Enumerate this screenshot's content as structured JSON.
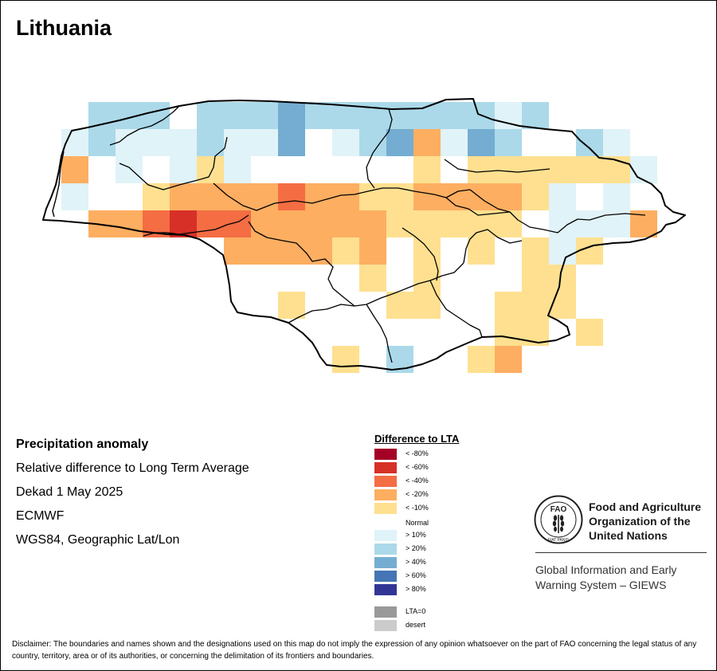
{
  "map": {
    "title": "Lithuania",
    "info_title": "Precipitation anomaly",
    "info_lines": [
      "Relative difference to Long Term Average",
      "Dekad 1 May 2025",
      "ECMWF",
      "WGS84, Geographic Lat/Lon"
    ]
  },
  "legend": {
    "title": "Difference to LTA",
    "items": [
      {
        "key": "lt_m80",
        "label": "< -80%",
        "color": "#a50026"
      },
      {
        "key": "lt_m60",
        "label": "< -60%",
        "color": "#d73027"
      },
      {
        "key": "lt_m40",
        "label": "< -40%",
        "color": "#f46d43"
      },
      {
        "key": "lt_m20",
        "label": "< -20%",
        "color": "#fdae61"
      },
      {
        "key": "lt_m10",
        "label": "< -10%",
        "color": "#fee090"
      },
      {
        "key": "gt_10",
        "label": "> 10%",
        "color": "#e0f3f8"
      },
      {
        "key": "gt_20",
        "label": "> 20%",
        "color": "#abd9e9"
      },
      {
        "key": "gt_40",
        "label": "> 40%",
        "color": "#74add1"
      },
      {
        "key": "gt_60",
        "label": "> 60%",
        "color": "#4575b4"
      },
      {
        "key": "gt_80",
        "label": "> 80%",
        "color": "#313695"
      },
      {
        "key": "lta0",
        "label": "LTA=0",
        "color": "#999999"
      },
      {
        "key": "desert",
        "label": "desert",
        "color": "#cccccc"
      }
    ],
    "normal_label": "Normal"
  },
  "org": {
    "fao_name_lines": [
      "Food and Agriculture",
      "Organization of the",
      "United Nations"
    ],
    "giews_lines": [
      "Global Information and Early",
      "Warning System – GIEWS"
    ],
    "logo_letters": "FAO",
    "logo_motto": "FIAT PANIS"
  },
  "disclaimer": "Disclaimer: The boundaries and names shown and the designations used on this map do not imply the expression of any opinion whatsoever on the part of FAO concerning the legal status of any country, territory, area or of its authorities, or concerning the delimitation of its frontiers and boundaries.",
  "grid_cells": [
    {
      "col": 1,
      "row": 0,
      "c": "gt_20"
    },
    {
      "col": 2,
      "row": 0,
      "c": "gt_20"
    },
    {
      "col": 3,
      "row": 0,
      "c": "gt_20"
    },
    {
      "col": 5,
      "row": 0,
      "c": "gt_20"
    },
    {
      "col": 6,
      "row": 0,
      "c": "gt_20"
    },
    {
      "col": 7,
      "row": 0,
      "c": "gt_20"
    },
    {
      "col": 8,
      "row": 0,
      "c": "gt_40"
    },
    {
      "col": 9,
      "row": 0,
      "c": "gt_20"
    },
    {
      "col": 10,
      "row": 0,
      "c": "gt_20"
    },
    {
      "col": 11,
      "row": 0,
      "c": "gt_20"
    },
    {
      "col": 12,
      "row": 0,
      "c": "gt_20"
    },
    {
      "col": 13,
      "row": 0,
      "c": "gt_20"
    },
    {
      "col": 14,
      "row": 0,
      "c": "gt_20"
    },
    {
      "col": 15,
      "row": 0,
      "c": "gt_20"
    },
    {
      "col": 16,
      "row": 0,
      "c": "gt_10"
    },
    {
      "col": 17,
      "row": 0,
      "c": "gt_20"
    },
    {
      "col": 0,
      "row": 1,
      "c": "gt_10"
    },
    {
      "col": 1,
      "row": 1,
      "c": "gt_20"
    },
    {
      "col": 2,
      "row": 1,
      "c": "gt_10"
    },
    {
      "col": 3,
      "row": 1,
      "c": "gt_10"
    },
    {
      "col": 4,
      "row": 1,
      "c": "gt_10"
    },
    {
      "col": 5,
      "row": 1,
      "c": "gt_20"
    },
    {
      "col": 6,
      "row": 1,
      "c": "gt_10"
    },
    {
      "col": 7,
      "row": 1,
      "c": "gt_10"
    },
    {
      "col": 8,
      "row": 1,
      "c": "gt_40"
    },
    {
      "col": 10,
      "row": 1,
      "c": "gt_10"
    },
    {
      "col": 11,
      "row": 1,
      "c": "gt_20"
    },
    {
      "col": 12,
      "row": 1,
      "c": "gt_40"
    },
    {
      "col": 13,
      "row": 1,
      "c": "lt_m20"
    },
    {
      "col": 14,
      "row": 1,
      "c": "gt_10"
    },
    {
      "col": 15,
      "row": 1,
      "c": "gt_40"
    },
    {
      "col": 16,
      "row": 1,
      "c": "gt_20"
    },
    {
      "col": 19,
      "row": 1,
      "c": "gt_20"
    },
    {
      "col": 20,
      "row": 1,
      "c": "gt_10"
    },
    {
      "col": 0,
      "row": 2,
      "c": "lt_m20"
    },
    {
      "col": 2,
      "row": 2,
      "c": "gt_10"
    },
    {
      "col": 4,
      "row": 2,
      "c": "gt_10"
    },
    {
      "col": 5,
      "row": 2,
      "c": "lt_m10"
    },
    {
      "col": 6,
      "row": 2,
      "c": "gt_10"
    },
    {
      "col": 13,
      "row": 2,
      "c": "lt_m10"
    },
    {
      "col": 15,
      "row": 2,
      "c": "lt_m10"
    },
    {
      "col": 16,
      "row": 2,
      "c": "lt_m10"
    },
    {
      "col": 17,
      "row": 2,
      "c": "lt_m10"
    },
    {
      "col": 18,
      "row": 2,
      "c": "lt_m10"
    },
    {
      "col": 19,
      "row": 2,
      "c": "lt_m10"
    },
    {
      "col": 20,
      "row": 2,
      "c": "lt_m10"
    },
    {
      "col": 21,
      "row": 2,
      "c": "gt_10"
    },
    {
      "col": 0,
      "row": 3,
      "c": "gt_10"
    },
    {
      "col": 3,
      "row": 3,
      "c": "lt_m10"
    },
    {
      "col": 4,
      "row": 3,
      "c": "lt_m20"
    },
    {
      "col": 5,
      "row": 3,
      "c": "lt_m20"
    },
    {
      "col": 6,
      "row": 3,
      "c": "lt_m20"
    },
    {
      "col": 7,
      "row": 3,
      "c": "lt_m20"
    },
    {
      "col": 8,
      "row": 3,
      "c": "lt_m40"
    },
    {
      "col": 9,
      "row": 3,
      "c": "lt_m20"
    },
    {
      "col": 10,
      "row": 3,
      "c": "lt_m20"
    },
    {
      "col": 11,
      "row": 3,
      "c": "lt_m10"
    },
    {
      "col": 12,
      "row": 3,
      "c": "lt_m10"
    },
    {
      "col": 13,
      "row": 3,
      "c": "lt_m20"
    },
    {
      "col": 14,
      "row": 3,
      "c": "lt_m20"
    },
    {
      "col": 15,
      "row": 3,
      "c": "lt_m20"
    },
    {
      "col": 16,
      "row": 3,
      "c": "lt_m20"
    },
    {
      "col": 17,
      "row": 3,
      "c": "lt_m10"
    },
    {
      "col": 18,
      "row": 3,
      "c": "gt_10"
    },
    {
      "col": 20,
      "row": 3,
      "c": "gt_10"
    },
    {
      "col": 1,
      "row": 4,
      "c": "lt_m20"
    },
    {
      "col": 2,
      "row": 4,
      "c": "lt_m20"
    },
    {
      "col": 3,
      "row": 4,
      "c": "lt_m40"
    },
    {
      "col": 4,
      "row": 4,
      "c": "lt_m60"
    },
    {
      "col": 5,
      "row": 4,
      "c": "lt_m40"
    },
    {
      "col": 6,
      "row": 4,
      "c": "lt_m40"
    },
    {
      "col": 7,
      "row": 4,
      "c": "lt_m20"
    },
    {
      "col": 8,
      "row": 4,
      "c": "lt_m20"
    },
    {
      "col": 9,
      "row": 4,
      "c": "lt_m20"
    },
    {
      "col": 10,
      "row": 4,
      "c": "lt_m20"
    },
    {
      "col": 11,
      "row": 4,
      "c": "lt_m20"
    },
    {
      "col": 12,
      "row": 4,
      "c": "lt_m10"
    },
    {
      "col": 13,
      "row": 4,
      "c": "lt_m10"
    },
    {
      "col": 14,
      "row": 4,
      "c": "lt_m10"
    },
    {
      "col": 15,
      "row": 4,
      "c": "lt_m10"
    },
    {
      "col": 16,
      "row": 4,
      "c": "lt_m10"
    },
    {
      "col": 18,
      "row": 4,
      "c": "gt_10"
    },
    {
      "col": 19,
      "row": 4,
      "c": "gt_10"
    },
    {
      "col": 20,
      "row": 4,
      "c": "gt_10"
    },
    {
      "col": 21,
      "row": 4,
      "c": "lt_m20"
    },
    {
      "col": 6,
      "row": 5,
      "c": "lt_m20"
    },
    {
      "col": 7,
      "row": 5,
      "c": "lt_m20"
    },
    {
      "col": 8,
      "row": 5,
      "c": "lt_m20"
    },
    {
      "col": 9,
      "row": 5,
      "c": "lt_m20"
    },
    {
      "col": 10,
      "row": 5,
      "c": "lt_m10"
    },
    {
      "col": 11,
      "row": 5,
      "c": "lt_m20"
    },
    {
      "col": 13,
      "row": 5,
      "c": "lt_m10"
    },
    {
      "col": 15,
      "row": 5,
      "c": "lt_m10"
    },
    {
      "col": 17,
      "row": 5,
      "c": "lt_m10"
    },
    {
      "col": 18,
      "row": 5,
      "c": "gt_10"
    },
    {
      "col": 19,
      "row": 5,
      "c": "lt_m10"
    },
    {
      "col": 11,
      "row": 6,
      "c": "lt_m10"
    },
    {
      "col": 13,
      "row": 6,
      "c": "lt_m10"
    },
    {
      "col": 17,
      "row": 6,
      "c": "lt_m10"
    },
    {
      "col": 18,
      "row": 6,
      "c": "lt_m10"
    },
    {
      "col": 8,
      "row": 7,
      "c": "lt_m10"
    },
    {
      "col": 12,
      "row": 7,
      "c": "lt_m10"
    },
    {
      "col": 13,
      "row": 7,
      "c": "lt_m10"
    },
    {
      "col": 16,
      "row": 7,
      "c": "lt_m10"
    },
    {
      "col": 17,
      "row": 7,
      "c": "lt_m10"
    },
    {
      "col": 18,
      "row": 7,
      "c": "lt_m10"
    },
    {
      "col": 16,
      "row": 8,
      "c": "lt_m10"
    },
    {
      "col": 17,
      "row": 8,
      "c": "lt_m10"
    },
    {
      "col": 19,
      "row": 8,
      "c": "lt_m10"
    },
    {
      "col": 10,
      "row": 9,
      "c": "lt_m10"
    },
    {
      "col": 12,
      "row": 9,
      "c": "gt_20"
    },
    {
      "col": 15,
      "row": 9,
      "c": "lt_m10"
    },
    {
      "col": 16,
      "row": 9,
      "c": "lt_m20"
    }
  ]
}
